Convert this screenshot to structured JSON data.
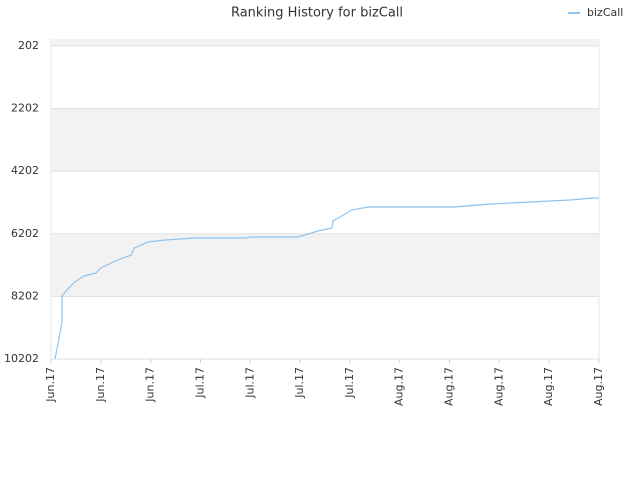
{
  "chart_data": {
    "type": "line",
    "title": "Ranking History for bizCall",
    "legend": "top-right",
    "series": [
      {
        "name": "bizCall",
        "color": "#90c3ee",
        "x": [
          0.08,
          0.22,
          0.22,
          0.3,
          0.48,
          0.66,
          0.9,
          1.0,
          1.29,
          1.61,
          1.67,
          1.95,
          2.29,
          2.91,
          3.92,
          4.0,
          4.96,
          5.36,
          5.64,
          5.66,
          5.8,
          6.04,
          6.37,
          8.11,
          8.82,
          9.62,
          10.42,
          10.86,
          11.0
        ],
        "values": [
          10202,
          9052,
          8190,
          8030,
          7742,
          7550,
          7455,
          7295,
          7071,
          6880,
          6656,
          6464,
          6400,
          6336,
          6336,
          6304,
          6304,
          6113,
          6017,
          5793,
          5665,
          5442,
          5346,
          5346,
          5250,
          5186,
          5122,
          5058,
          5058
        ]
      }
    ],
    "xlim": [
      0,
      11
    ],
    "xticks": [
      {
        "value": 0,
        "label": "Jun.17"
      },
      {
        "value": 1,
        "label": "Jun.17"
      },
      {
        "value": 2,
        "label": "Jun.17"
      },
      {
        "value": 3,
        "label": "Jul.17"
      },
      {
        "value": 4,
        "label": "Jul.17"
      },
      {
        "value": 5,
        "label": "Jul.17"
      },
      {
        "value": 6,
        "label": "Jul.17"
      },
      {
        "value": 7,
        "label": "Aug.17"
      },
      {
        "value": 8,
        "label": "Aug.17"
      },
      {
        "value": 9,
        "label": "Aug.17"
      },
      {
        "value": 10,
        "label": "Aug.17"
      },
      {
        "value": 11,
        "label": "Aug.17"
      }
    ],
    "ylim": [
      10202,
      10
    ],
    "yticks": [
      202,
      2202,
      4202,
      6202,
      8202,
      10202
    ],
    "grid": true
  }
}
